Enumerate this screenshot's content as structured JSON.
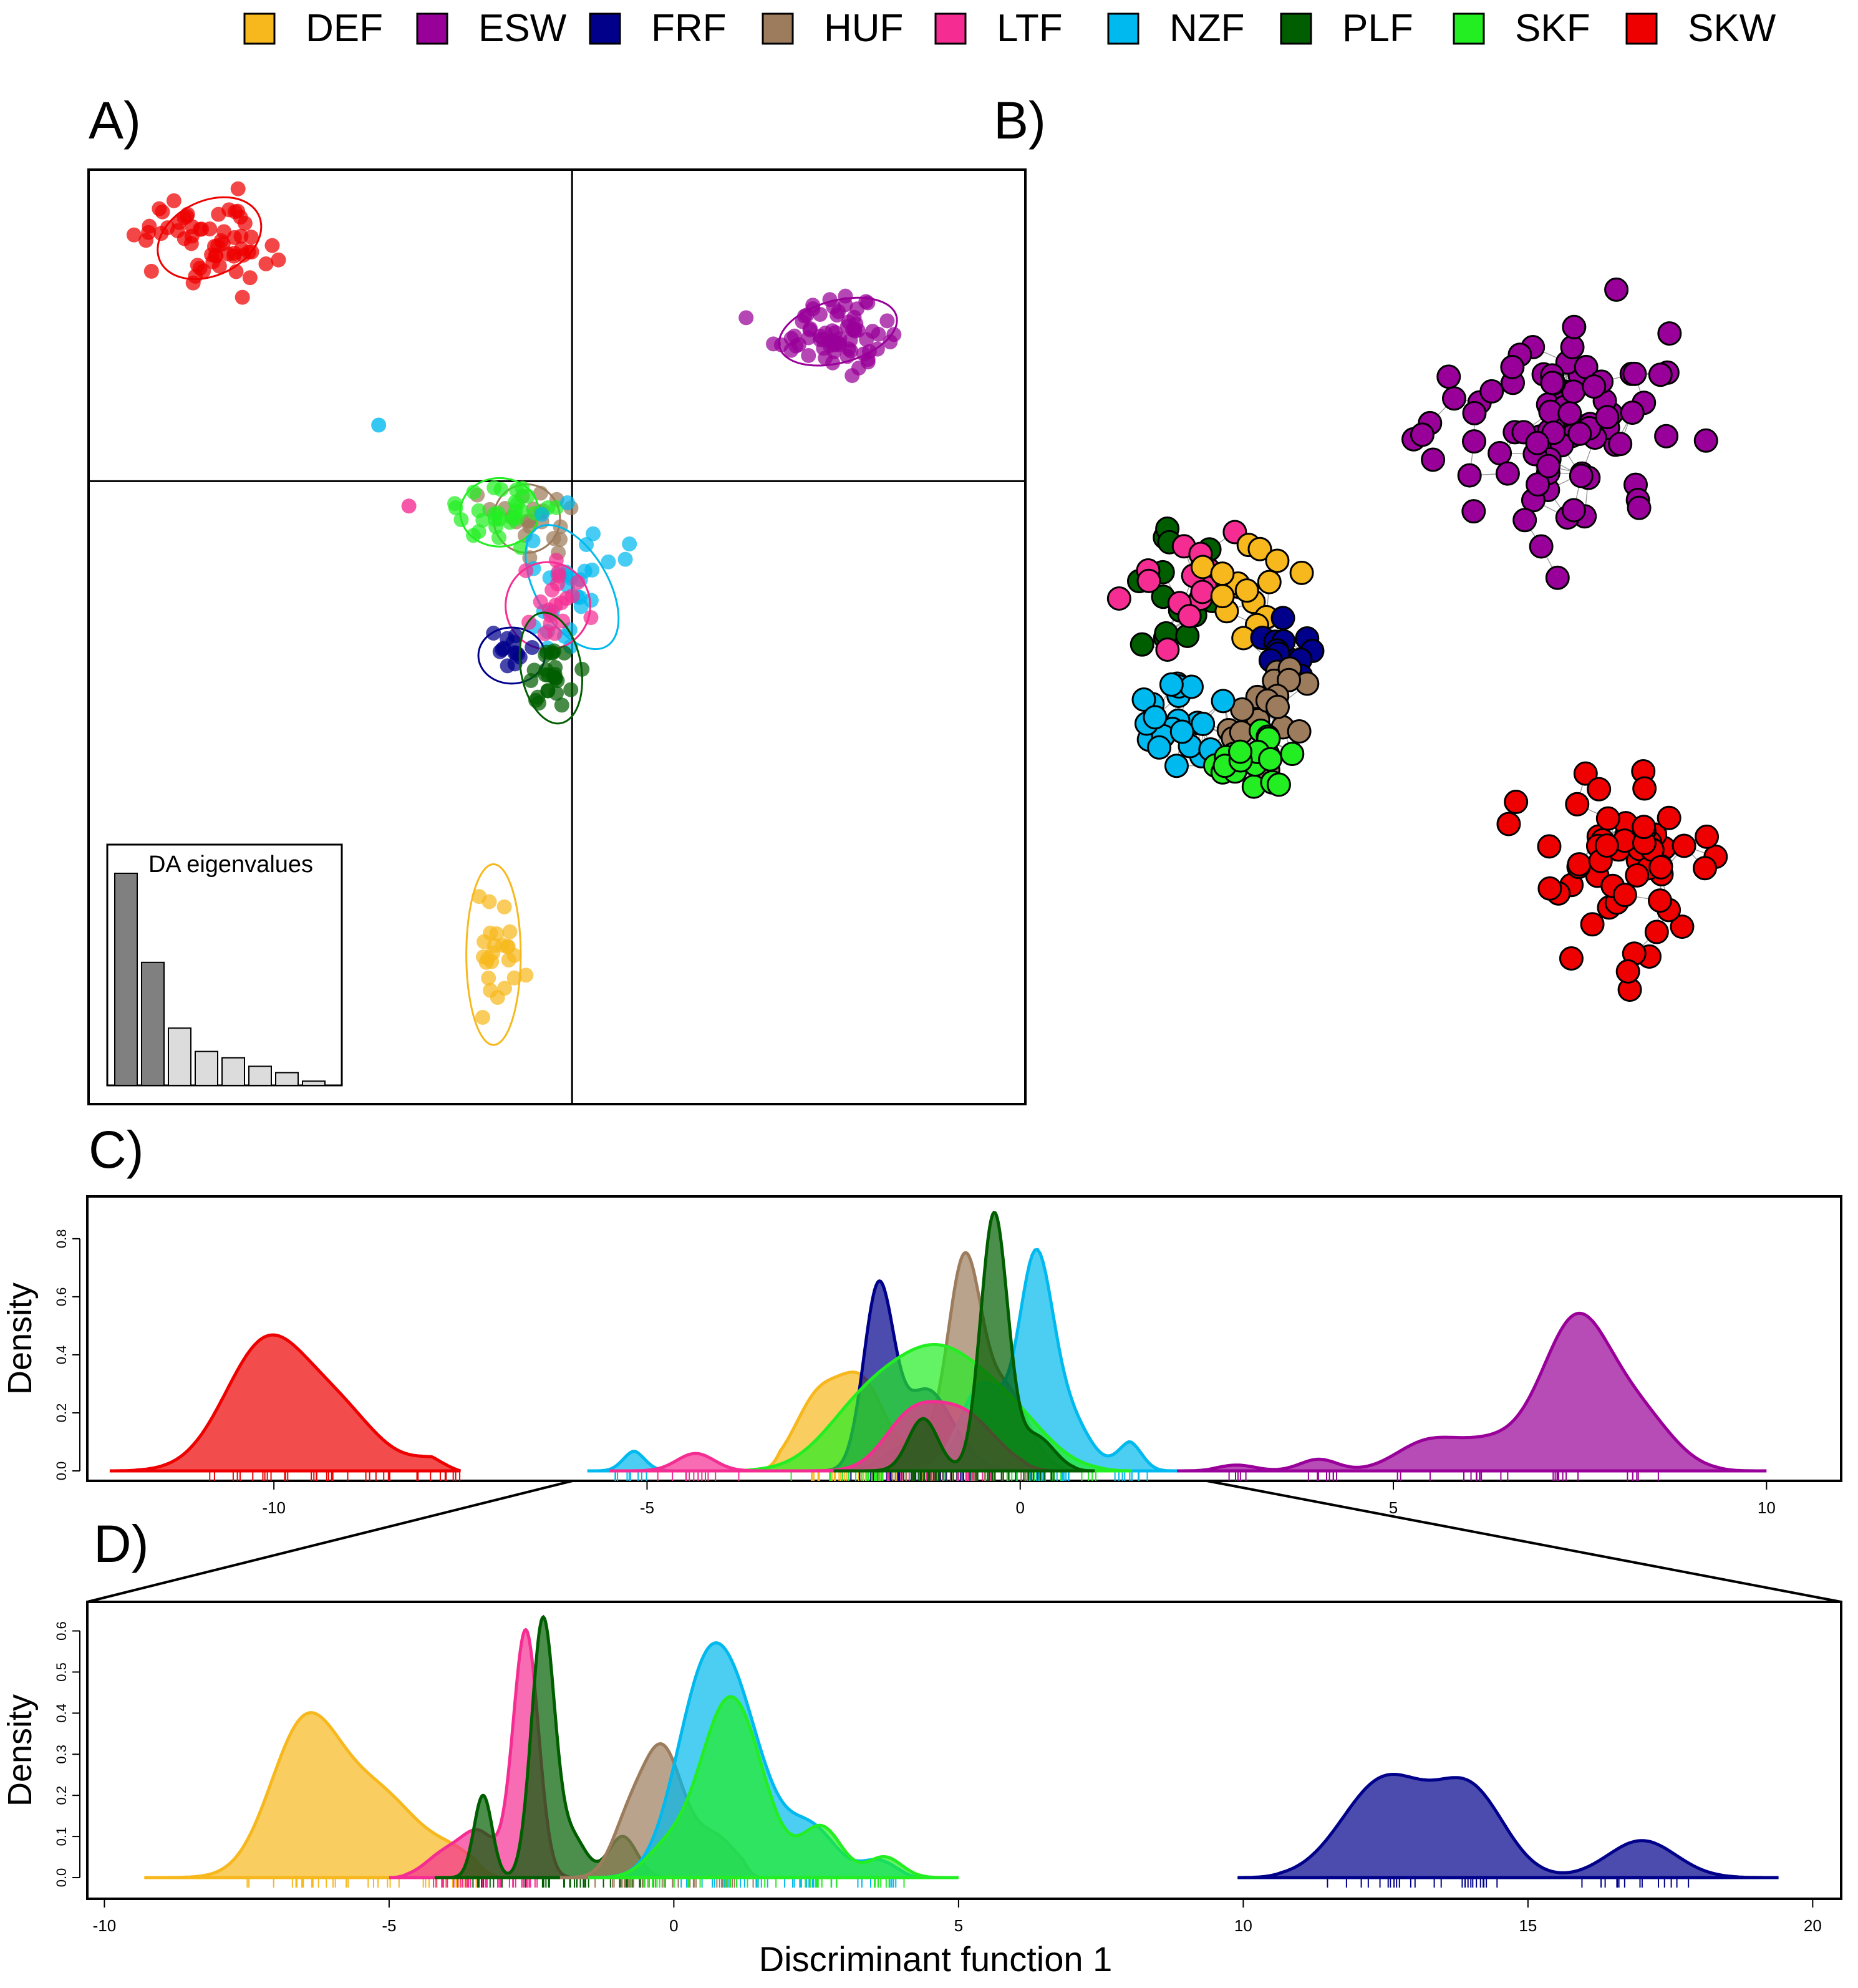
{
  "legend": [
    {
      "name": "DEF",
      "color": "#F7B81D"
    },
    {
      "name": "ESW",
      "color": "#990099"
    },
    {
      "name": "FRF",
      "color": "#00008B"
    },
    {
      "name": "HUF",
      "color": "#9C7C5C"
    },
    {
      "name": "LTF",
      "color": "#F52D93"
    },
    {
      "name": "NZF",
      "color": "#00B9EE"
    },
    {
      "name": "PLF",
      "color": "#005E00"
    },
    {
      "name": "SKF",
      "color": "#22EE22"
    },
    {
      "name": "SKW",
      "color": "#EE0000"
    }
  ],
  "panel_labels": {
    "a": "A)",
    "b": "B)",
    "c": "C)",
    "d": "D)"
  },
  "chart_data": [
    {
      "panel": "A",
      "type": "scatter",
      "title": "",
      "xlabel": "",
      "ylabel": "",
      "xlim": [
        -8,
        7.5
      ],
      "ylim": [
        -10,
        5
      ],
      "axes_cross_at": [
        0,
        0
      ],
      "clusters": [
        {
          "name": "SKW",
          "center": [
            -6.0,
            3.9
          ],
          "spread": [
            0.55,
            0.38
          ],
          "n": 60,
          "ellipse": [
            0.9,
            0.6,
            -25
          ]
        },
        {
          "name": "ESW",
          "center": [
            4.4,
            2.4
          ],
          "spread": [
            0.55,
            0.3
          ],
          "n": 70,
          "ellipse": [
            1.0,
            0.5,
            -15
          ]
        },
        {
          "name": "HUF",
          "center": [
            -0.75,
            -0.6
          ],
          "spread": [
            0.3,
            0.3
          ],
          "n": 22,
          "ellipse": [
            0.55,
            0.55,
            0
          ]
        },
        {
          "name": "SKF",
          "center": [
            -1.2,
            -0.5
          ],
          "spread": [
            0.35,
            0.3
          ],
          "n": 30,
          "ellipse": [
            0.65,
            0.55,
            0
          ]
        },
        {
          "name": "NZF",
          "center": [
            0.0,
            -1.7
          ],
          "spread": [
            0.35,
            0.6
          ],
          "n": 30,
          "ellipse": [
            0.6,
            1.1,
            -30
          ]
        },
        {
          "name": "LTF",
          "center": [
            -0.4,
            -2.0
          ],
          "spread": [
            0.3,
            0.3
          ],
          "n": 20,
          "ellipse": [
            0.7,
            0.7,
            0
          ]
        },
        {
          "name": "FRF",
          "center": [
            -1.0,
            -2.8
          ],
          "spread": [
            0.2,
            0.2
          ],
          "n": 14,
          "ellipse": [
            0.55,
            0.45,
            0
          ]
        },
        {
          "name": "PLF",
          "center": [
            -0.35,
            -3.0
          ],
          "spread": [
            0.25,
            0.3
          ],
          "n": 26,
          "ellipse": [
            0.5,
            0.9,
            -10
          ]
        },
        {
          "name": "DEF",
          "center": [
            -1.3,
            -7.6
          ],
          "spread": [
            0.2,
            0.45
          ],
          "n": 25,
          "ellipse": [
            0.45,
            1.45,
            0
          ]
        }
      ],
      "outliers": [
        {
          "name": "NZF",
          "x": -3.2,
          "y": 0.9
        },
        {
          "name": "LTF",
          "x": -2.7,
          "y": -0.4
        }
      ],
      "inset": {
        "title": "DA eigenvalues",
        "values": [
          1.0,
          0.58,
          0.27,
          0.16,
          0.13,
          0.09,
          0.06,
          0.02
        ],
        "retained": 2
      }
    },
    {
      "panel": "B",
      "type": "network",
      "groups": [
        {
          "name": "ESW",
          "center": [
            2500,
            680
          ],
          "spread": [
            150,
            140
          ],
          "n": 85
        },
        {
          "name": "SKW",
          "center": [
            2600,
            1380
          ],
          "spread": [
            130,
            120
          ],
          "n": 60
        },
        {
          "name": "PLF",
          "center": [
            1880,
            970
          ],
          "spread": [
            60,
            90
          ],
          "n": 15
        },
        {
          "name": "LTF",
          "center": [
            1900,
            930
          ],
          "spread": [
            70,
            70
          ],
          "n": 14
        },
        {
          "name": "DEF",
          "center": [
            1990,
            930
          ],
          "spread": [
            60,
            70
          ],
          "n": 16
        },
        {
          "name": "FRF",
          "center": [
            2060,
            1040
          ],
          "spread": [
            40,
            50
          ],
          "n": 12
        },
        {
          "name": "HUF",
          "center": [
            2020,
            1140
          ],
          "spread": [
            60,
            70
          ],
          "n": 18
        },
        {
          "name": "NZF",
          "center": [
            1880,
            1180
          ],
          "spread": [
            60,
            60
          ],
          "n": 22
        },
        {
          "name": "SKF",
          "center": [
            2010,
            1220
          ],
          "spread": [
            60,
            50
          ],
          "n": 20
        }
      ]
    },
    {
      "panel": "C",
      "type": "area",
      "xlabel": "",
      "ylabel": "Density",
      "xlim": [
        -12.5,
        11
      ],
      "ylim": [
        0,
        0.92
      ],
      "xticks": [
        "-10",
        "-5",
        "0",
        "5",
        "10"
      ],
      "yticks": [
        "0.0",
        "0.2",
        "0.4",
        "0.6",
        "0.8"
      ],
      "range": [
        -12,
        10
      ],
      "series": [
        {
          "name": "SKW",
          "range": [
            -12.2,
            -7.5
          ],
          "peaks": [
            [
              -10.1,
              0.44,
              0.55
            ],
            [
              -9.1,
              0.18,
              0.5
            ],
            [
              -7.8,
              0.04,
              0.35
            ]
          ]
        },
        {
          "name": "ESW",
          "range": [
            2.0,
            10.0
          ],
          "peaks": [
            [
              7.45,
              0.5,
              0.45
            ],
            [
              6.3,
              0.1,
              0.55
            ],
            [
              8.3,
              0.18,
              0.45
            ],
            [
              5.4,
              0.08,
              0.4
            ],
            [
              4.0,
              0.04,
              0.25
            ],
            [
              2.9,
              0.02,
              0.25
            ]
          ]
        },
        {
          "name": "DEF",
          "range": [
            -3.5,
            0.0
          ],
          "peaks": [
            [
              -2.1,
              0.28,
              0.3
            ],
            [
              -2.7,
              0.25,
              0.32
            ],
            [
              -1.2,
              0.1,
              0.3
            ]
          ]
        },
        {
          "name": "HUF",
          "range": [
            -2.5,
            0.8
          ],
          "peaks": [
            [
              -0.75,
              0.68,
              0.22
            ],
            [
              -0.2,
              0.28,
              0.3
            ],
            [
              -1.4,
              0.1,
              0.35
            ]
          ]
        },
        {
          "name": "FRF",
          "range": [
            -3.0,
            0.5
          ],
          "peaks": [
            [
              -1.9,
              0.62,
              0.2
            ],
            [
              -1.3,
              0.22,
              0.3
            ],
            [
              -1.0,
              0.08,
              0.35
            ]
          ]
        },
        {
          "name": "NZF",
          "range": [
            -5.8,
            2.1
          ],
          "peaks": [
            [
              0.2,
              0.66,
              0.22
            ],
            [
              0.6,
              0.2,
              0.3
            ],
            [
              1.5,
              0.1,
              0.18
            ],
            [
              -0.5,
              0.3,
              0.3
            ],
            [
              -5.2,
              0.07,
              0.16
            ]
          ]
        },
        {
          "name": "SKF",
          "range": [
            -4.0,
            1.5
          ],
          "peaks": [
            [
              -1.1,
              0.42,
              0.75
            ],
            [
              -2.2,
              0.12,
              0.5
            ],
            [
              0.0,
              0.08,
              0.45
            ]
          ]
        },
        {
          "name": "LTF",
          "range": [
            -5.5,
            0.5
          ],
          "peaks": [
            [
              -0.8,
              0.2,
              0.45
            ],
            [
              -1.5,
              0.15,
              0.35
            ],
            [
              -4.35,
              0.06,
              0.25
            ]
          ]
        },
        {
          "name": "PLF",
          "range": [
            -2.5,
            1.0
          ],
          "peaks": [
            [
              -0.35,
              0.88,
              0.18
            ],
            [
              -1.3,
              0.18,
              0.2
            ],
            [
              0.2,
              0.12,
              0.25
            ]
          ]
        }
      ],
      "zoom_range": [
        -6,
        2.5
      ]
    },
    {
      "panel": "D",
      "type": "area",
      "xlabel": "Discriminant function 1",
      "ylabel": "Density",
      "xlim": [
        -10.3,
        20.5
      ],
      "ylim": [
        0,
        0.66
      ],
      "xticks": [
        "-10",
        "-5",
        "0",
        "5",
        "10",
        "15",
        "20"
      ],
      "yticks": [
        "0.0",
        "0.1",
        "0.2",
        "0.3",
        "0.4",
        "0.5",
        "0.6"
      ],
      "series": [
        {
          "name": "DEF",
          "range": [
            -9.3,
            -3.0
          ],
          "peaks": [
            [
              -6.5,
              0.35,
              0.6
            ],
            [
              -5.2,
              0.2,
              0.75
            ],
            [
              -3.8,
              0.04,
              0.4
            ]
          ]
        },
        {
          "name": "LTF",
          "range": [
            -5.0,
            -1.0
          ],
          "peaks": [
            [
              -2.6,
              0.6,
              0.22
            ],
            [
              -3.4,
              0.1,
              0.3
            ],
            [
              -4.0,
              0.06,
              0.35
            ]
          ]
        },
        {
          "name": "PLF",
          "range": [
            -4.2,
            0.0
          ],
          "peaks": [
            [
              -2.3,
              0.62,
              0.2
            ],
            [
              -3.35,
              0.2,
              0.16
            ],
            [
              -0.9,
              0.1,
              0.25
            ],
            [
              -1.8,
              0.1,
              0.25
            ]
          ]
        },
        {
          "name": "HUF",
          "range": [
            -2.0,
            1.5
          ],
          "peaks": [
            [
              -0.2,
              0.3,
              0.35
            ],
            [
              -0.8,
              0.12,
              0.3
            ],
            [
              0.7,
              0.1,
              0.4
            ]
          ]
        },
        {
          "name": "NZF",
          "range": [
            -1.5,
            4.5
          ],
          "peaks": [
            [
              0.5,
              0.42,
              0.5
            ],
            [
              1.2,
              0.3,
              0.5
            ],
            [
              2.4,
              0.12,
              0.45
            ],
            [
              3.6,
              0.04,
              0.3
            ]
          ]
        },
        {
          "name": "SKF",
          "range": [
            -1.5,
            5.0
          ],
          "peaks": [
            [
              1.0,
              0.44,
              0.55
            ],
            [
              2.6,
              0.12,
              0.35
            ],
            [
              3.7,
              0.05,
              0.3
            ],
            [
              -0.2,
              0.05,
              0.35
            ]
          ]
        },
        {
          "name": "FRF",
          "range": [
            9.9,
            19.4
          ],
          "peaks": [
            [
              12.5,
              0.24,
              0.75
            ],
            [
              14.0,
              0.2,
              0.6
            ],
            [
              17.0,
              0.09,
              0.6
            ]
          ]
        }
      ]
    }
  ]
}
